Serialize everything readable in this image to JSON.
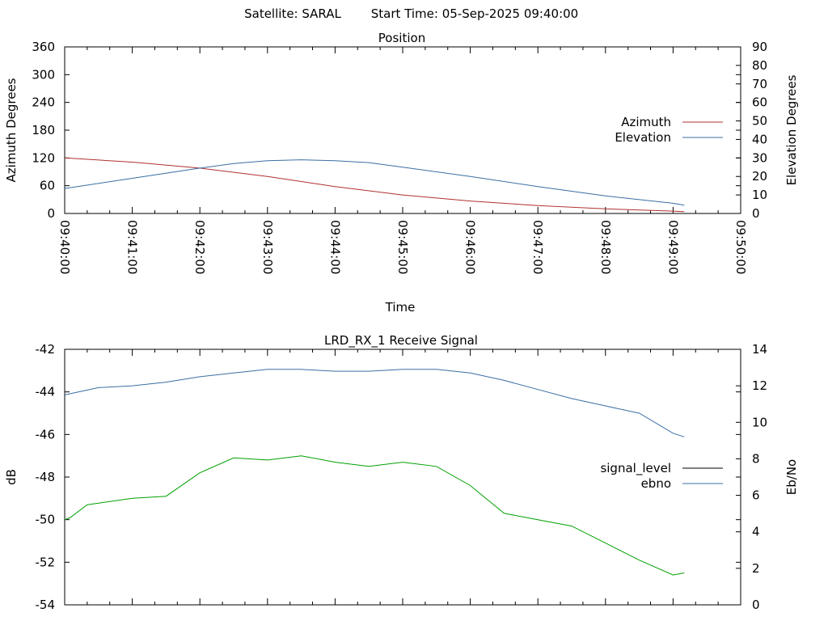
{
  "header": {
    "satellite": "Satellite: SARAL",
    "start_time": "Start Time: 05-Sep-2025 09:40:00"
  },
  "colors": {
    "azimuth": "#b03030",
    "elevation": "#3a6ea5",
    "signal_level": "#00a000",
    "ebno": "#3a6ea5"
  },
  "chart_data": [
    {
      "type": "line",
      "title": "Position",
      "xlabel": "Time",
      "ylabel": "Azimuth Degrees",
      "y2label": "Elevation Degrees",
      "xlim": [
        "09:40:00",
        "09:50:00"
      ],
      "ylim": [
        0,
        360
      ],
      "y2lim": [
        0,
        90
      ],
      "x_ticks": [
        "09:40:00",
        "09:41:00",
        "09:42:00",
        "09:43:00",
        "09:44:00",
        "09:45:00",
        "09:46:00",
        "09:47:00",
        "09:48:00",
        "09:49:00",
        "09:50:00"
      ],
      "y_ticks": [
        "0",
        "60",
        "120",
        "180",
        "240",
        "300",
        "360"
      ],
      "y2_ticks": [
        "0",
        "10",
        "20",
        "30",
        "40",
        "50",
        "60",
        "70",
        "80",
        "90"
      ],
      "legend_position": "right",
      "series": [
        {
          "name": "Azimuth",
          "axis": "y",
          "color": "#b03030",
          "x": [
            "09:40:00",
            "09:41:00",
            "09:42:00",
            "09:43:00",
            "09:44:00",
            "09:45:00",
            "09:46:00",
            "09:47:00",
            "09:48:00",
            "09:49:00",
            "09:49:10"
          ],
          "values": [
            120,
            111,
            98,
            80,
            58,
            40,
            27,
            17,
            10,
            5,
            4
          ]
        },
        {
          "name": "Elevation",
          "axis": "y2",
          "color": "#3a6ea5",
          "x": [
            "09:40:00",
            "09:41:00",
            "09:42:00",
            "09:42:30",
            "09:43:00",
            "09:43:30",
            "09:44:00",
            "09:44:30",
            "09:45:00",
            "09:46:00",
            "09:47:00",
            "09:48:00",
            "09:49:00",
            "09:49:10"
          ],
          "values": [
            13.5,
            19,
            24.5,
            27,
            28.5,
            29,
            28.5,
            27.5,
            25,
            20,
            14.5,
            9.5,
            5.5,
            4.5
          ]
        }
      ]
    },
    {
      "type": "line",
      "title": "LRD_RX_1 Receive Signal",
      "ylabel": "dB",
      "y2label": "Eb/No",
      "xlim": [
        "09:40:00",
        "09:50:00"
      ],
      "ylim": [
        -54,
        -42
      ],
      "y2lim": [
        0,
        14
      ],
      "y_ticks": [
        "-54",
        "-52",
        "-50",
        "-48",
        "-46",
        "-44",
        "-42"
      ],
      "y2_ticks": [
        "0",
        "2",
        "4",
        "6",
        "8",
        "10",
        "12",
        "14"
      ],
      "legend_position": "right",
      "series": [
        {
          "name": "signal_level",
          "axis": "y",
          "color": "#000000",
          "x": [],
          "values": []
        },
        {
          "name": "ebno",
          "axis": "y2",
          "color": "#3a6ea5",
          "x": [
            "09:40:00",
            "09:40:30",
            "09:41:00",
            "09:41:30",
            "09:42:00",
            "09:42:30",
            "09:43:00",
            "09:43:30",
            "09:44:00",
            "09:44:30",
            "09:45:00",
            "09:45:30",
            "09:46:00",
            "09:46:30",
            "09:47:00",
            "09:47:30",
            "09:48:00",
            "09:48:30",
            "09:49:00",
            "09:49:10"
          ],
          "values": [
            11.5,
            11.9,
            12.0,
            12.2,
            12.5,
            12.7,
            12.9,
            12.9,
            12.8,
            12.8,
            12.9,
            12.9,
            12.7,
            12.3,
            11.8,
            11.3,
            10.9,
            10.5,
            9.4,
            9.2
          ]
        },
        {
          "name": "",
          "axis": "y",
          "color": "#00a000",
          "x": [
            "09:40:00",
            "09:40:05",
            "09:40:20",
            "09:41:00",
            "09:41:30",
            "09:42:00",
            "09:42:30",
            "09:43:00",
            "09:43:30",
            "09:44:00",
            "09:44:30",
            "09:45:00",
            "09:45:30",
            "09:46:00",
            "09:46:30",
            "09:47:00",
            "09:47:30",
            "09:48:00",
            "09:48:30",
            "09:49:00",
            "09:49:10"
          ],
          "values": [
            -50.0,
            -49.9,
            -49.3,
            -49.0,
            -48.9,
            -47.8,
            -47.1,
            -47.2,
            -47.0,
            -47.3,
            -47.5,
            -47.3,
            -47.5,
            -48.4,
            -49.7,
            -50.0,
            -50.3,
            -51.1,
            -51.9,
            -52.6,
            -52.5
          ]
        }
      ]
    }
  ]
}
